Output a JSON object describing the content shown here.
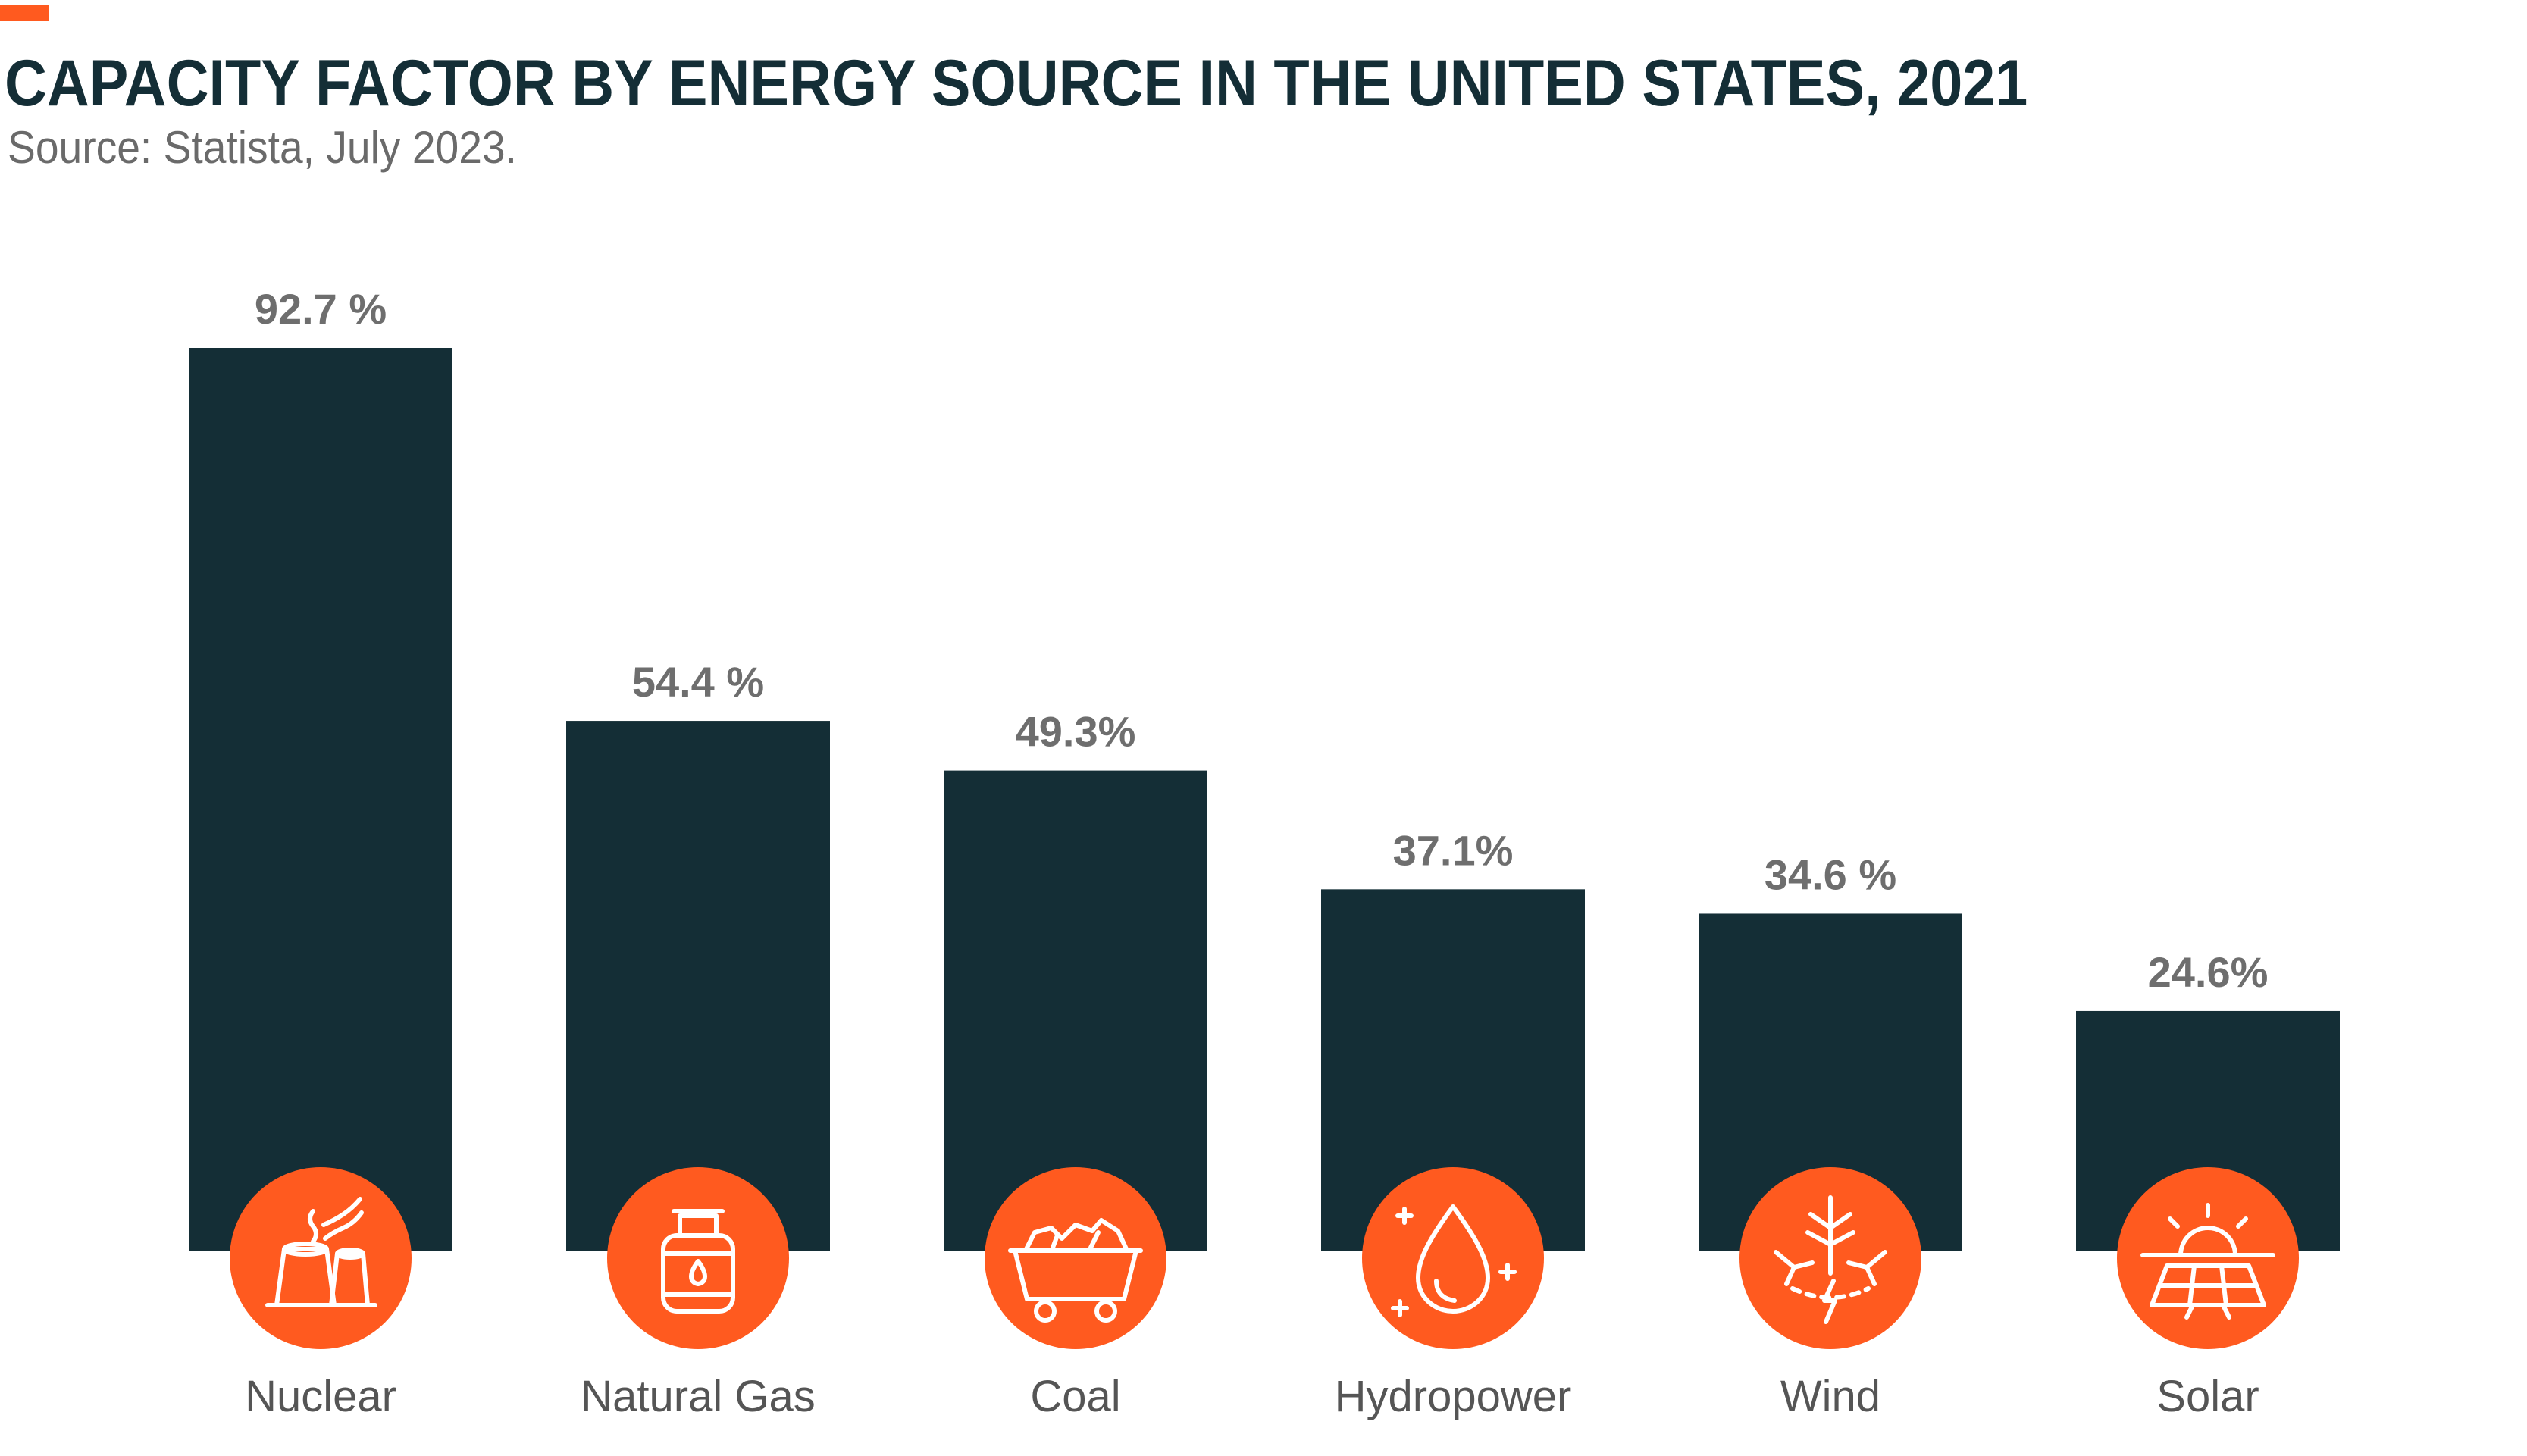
{
  "header": {
    "title": "CAPACITY FACTOR BY ENERGY SOURCE IN THE UNITED STATES, 2021",
    "subtitle": "Source: Statista, July 2023."
  },
  "colors": {
    "bar": "#142e36",
    "accent": "#ff5a1f",
    "title": "#142e36",
    "value_label": "#6e6e6e",
    "category_label": "#555555",
    "icon_stroke": "#ffffff"
  },
  "chart_data": {
    "type": "bar",
    "title": "CAPACITY FACTOR BY ENERGY SOURCE IN THE UNITED STATES, 2021",
    "subtitle": "Source: Statista, July 2023.",
    "xlabel": "",
    "ylabel": "",
    "ylim": [
      0,
      100
    ],
    "grid": false,
    "categories": [
      "Nuclear",
      "Natural Gas",
      "Coal",
      "Hydropower",
      "Wind",
      "Solar"
    ],
    "values": [
      92.7,
      54.4,
      49.3,
      37.1,
      34.6,
      24.6
    ],
    "value_labels": [
      "92.7 %",
      "54.4 %",
      "49.3%",
      "37.1%",
      "34.6 %",
      "24.6%"
    ],
    "icons": [
      "nuclear-plant-icon",
      "gas-cylinder-icon",
      "coal-cart-icon",
      "water-drop-icon",
      "wind-turbine-icon",
      "solar-panel-icon"
    ]
  }
}
